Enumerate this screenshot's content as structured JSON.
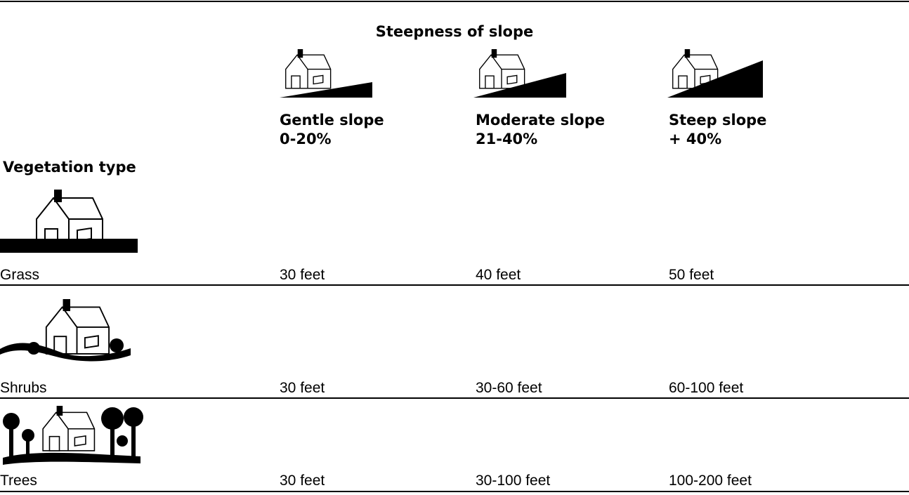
{
  "header": {
    "title": "Steepness of slope"
  },
  "columns": [
    {
      "name": "Gentle slope",
      "range": "0-20%"
    },
    {
      "name": "Moderate slope",
      "range": "21-40%"
    },
    {
      "name": "Steep slope",
      "range": "+ 40%"
    }
  ],
  "row_header": "Vegetation type",
  "rows": [
    {
      "label": "Grass",
      "values": [
        "30 feet",
        "40 feet",
        "50 feet"
      ]
    },
    {
      "label": "Shrubs",
      "values": [
        "30 feet",
        "30-60 feet",
        "60-100 feet"
      ]
    },
    {
      "label": "Trees",
      "values": [
        "30 feet",
        "30-100 feet",
        "100-200 feet"
      ]
    }
  ]
}
